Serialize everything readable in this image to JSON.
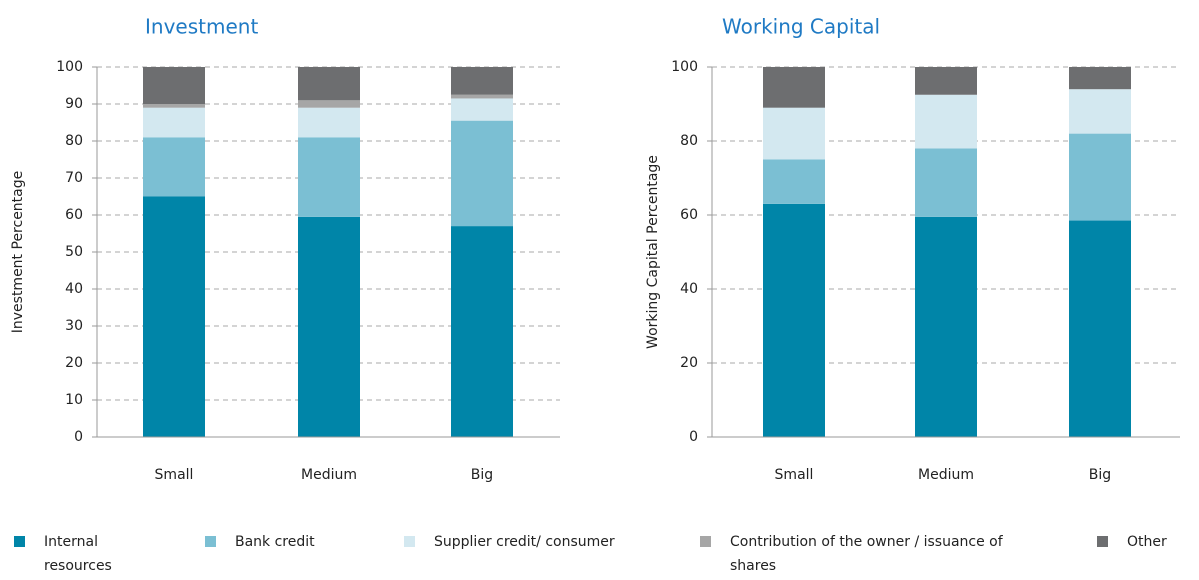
{
  "chart_data": [
    {
      "type": "bar",
      "stacked": true,
      "title": "Investment",
      "y_label": "Investment Percentage",
      "categories": [
        "Small",
        "Medium",
        "Big"
      ],
      "series": [
        {
          "name": "Internal resources",
          "color": "#0085a8",
          "values": [
            65,
            59.5,
            57
          ]
        },
        {
          "name": "Bank credit",
          "color": "#7bbfd3",
          "values": [
            16,
            21.5,
            28.5
          ]
        },
        {
          "name": "Supplier credit/ consumer",
          "color": "#d3e8f0",
          "values": [
            8,
            8,
            6
          ]
        },
        {
          "name": "Contribution of the owner / issuance of shares",
          "color": "#a6a6a6",
          "values": [
            1,
            2,
            1
          ]
        },
        {
          "name": "Other",
          "color": "#6d6e70",
          "values": [
            10,
            9,
            7.5
          ]
        }
      ],
      "ylim": [
        0,
        100
      ],
      "yticks": [
        0,
        10,
        20,
        30,
        40,
        50,
        60,
        70,
        80,
        90,
        100
      ],
      "grid": true
    },
    {
      "type": "bar",
      "stacked": true,
      "title": "Working Capital",
      "y_label": "Working Capital Percentage",
      "categories": [
        "Small",
        "Medium",
        "Big"
      ],
      "series": [
        {
          "name": "Internal resources",
          "color": "#0085a8",
          "values": [
            63,
            59.5,
            58.5
          ]
        },
        {
          "name": "Bank credit",
          "color": "#7bbfd3",
          "values": [
            12,
            18.5,
            23.5
          ]
        },
        {
          "name": "Supplier credit/ consumer",
          "color": "#d3e8f0",
          "values": [
            14,
            14.5,
            12
          ]
        },
        {
          "name": "Contribution of the owner / issuance of shares",
          "color": "#a6a6a6",
          "values": [
            0,
            0,
            0
          ]
        },
        {
          "name": "Other",
          "color": "#6d6e70",
          "values": [
            11,
            7.5,
            6
          ]
        }
      ],
      "ylim": [
        0,
        100
      ],
      "yticks": [
        0,
        20,
        40,
        60,
        80,
        100
      ],
      "grid": true
    }
  ]
}
